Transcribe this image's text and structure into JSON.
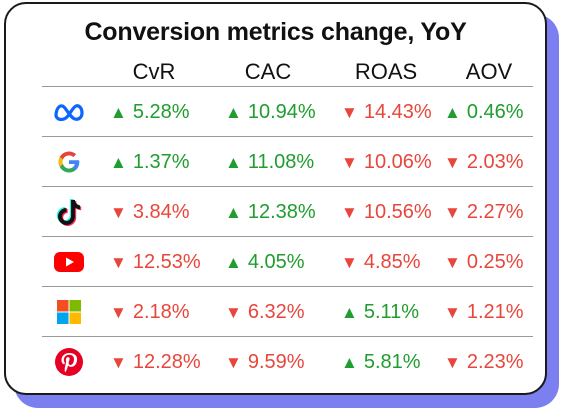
{
  "title": "Conversion metrics change, YoY",
  "columns": [
    "CvR",
    "CAC",
    "ROAS",
    "AOV"
  ],
  "colors": {
    "up": "#1f9d2e",
    "down": "#e8463c",
    "shadow": "#7b7ff0"
  },
  "chart_data": {
    "type": "table",
    "title": "Conversion metrics change, YoY",
    "columns": [
      "CvR",
      "CAC",
      "ROAS",
      "AOV"
    ],
    "rows": [
      {
        "platform_icon": "meta-icon",
        "cells": [
          {
            "text": "5.28%",
            "dir": "up",
            "value": 5.28
          },
          {
            "text": "10.94%",
            "dir": "up",
            "value": 10.94
          },
          {
            "text": "14.43%",
            "dir": "down",
            "value": -14.43
          },
          {
            "text": "0.46%",
            "dir": "up",
            "value": 0.46
          }
        ]
      },
      {
        "platform_icon": "google-icon",
        "cells": [
          {
            "text": "1.37%",
            "dir": "up",
            "value": 1.37
          },
          {
            "text": "11.08%",
            "dir": "up",
            "value": 11.08
          },
          {
            "text": "10.06%",
            "dir": "down",
            "value": -10.06
          },
          {
            "text": "2.03%",
            "dir": "down",
            "value": -2.03
          }
        ]
      },
      {
        "platform_icon": "tiktok-icon",
        "cells": [
          {
            "text": "3.84%",
            "dir": "down",
            "value": -3.84
          },
          {
            "text": "12.38%",
            "dir": "up",
            "value": 12.38
          },
          {
            "text": "10.56%",
            "dir": "down",
            "value": -10.56
          },
          {
            "text": "2.27%",
            "dir": "down",
            "value": -2.27
          }
        ]
      },
      {
        "platform_icon": "youtube-icon",
        "cells": [
          {
            "text": "12.53%",
            "dir": "down",
            "value": -12.53
          },
          {
            "text": "4.05%",
            "dir": "up",
            "value": 4.05
          },
          {
            "text": "4.85%",
            "dir": "down",
            "value": -4.85
          },
          {
            "text": "0.25%",
            "dir": "down",
            "value": -0.25
          }
        ]
      },
      {
        "platform_icon": "microsoft-icon",
        "cells": [
          {
            "text": "2.18%",
            "dir": "down",
            "value": -2.18
          },
          {
            "text": "6.32%",
            "dir": "down",
            "value": -6.32
          },
          {
            "text": "5.11%",
            "dir": "up",
            "value": 5.11
          },
          {
            "text": "1.21%",
            "dir": "down",
            "value": -1.21
          }
        ]
      },
      {
        "platform_icon": "pinterest-icon",
        "cells": [
          {
            "text": "12.28%",
            "dir": "down",
            "value": -12.28
          },
          {
            "text": "9.59%",
            "dir": "down",
            "value": -9.59
          },
          {
            "text": "5.81%",
            "dir": "up",
            "value": 5.81
          },
          {
            "text": "2.23%",
            "dir": "down",
            "value": -2.23
          }
        ]
      }
    ]
  }
}
